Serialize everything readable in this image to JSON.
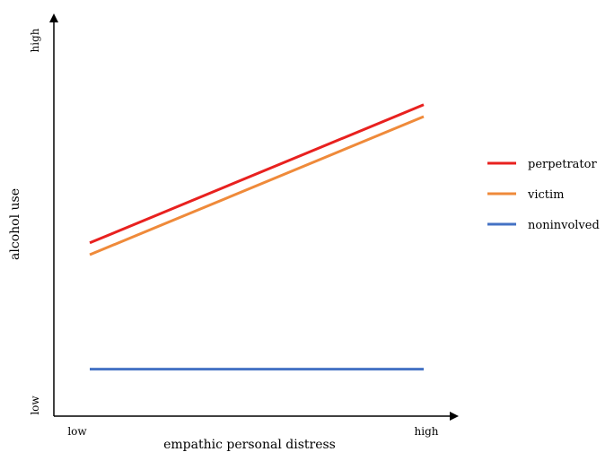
{
  "chart_data": {
    "type": "line",
    "title": "",
    "xlabel": "empathic personal distress",
    "ylabel": "alcohol use",
    "x_ticks": [
      "low",
      "high"
    ],
    "y_ticks": [
      "low",
      "high"
    ],
    "xlim": [
      0,
      1
    ],
    "ylim": [
      0,
      1
    ],
    "grid": false,
    "legend_position": "right",
    "series": [
      {
        "name": "perpetrator",
        "color": "#e8211f",
        "x": [
          0,
          1
        ],
        "y": [
          0.43,
          0.78
        ]
      },
      {
        "name": "victim",
        "color": "#ef8a3a",
        "x": [
          0,
          1
        ],
        "y": [
          0.4,
          0.75
        ]
      },
      {
        "name": "noninvolved",
        "color": "#4472c4",
        "x": [
          0,
          1
        ],
        "y": [
          0.11,
          0.11
        ]
      }
    ]
  }
}
